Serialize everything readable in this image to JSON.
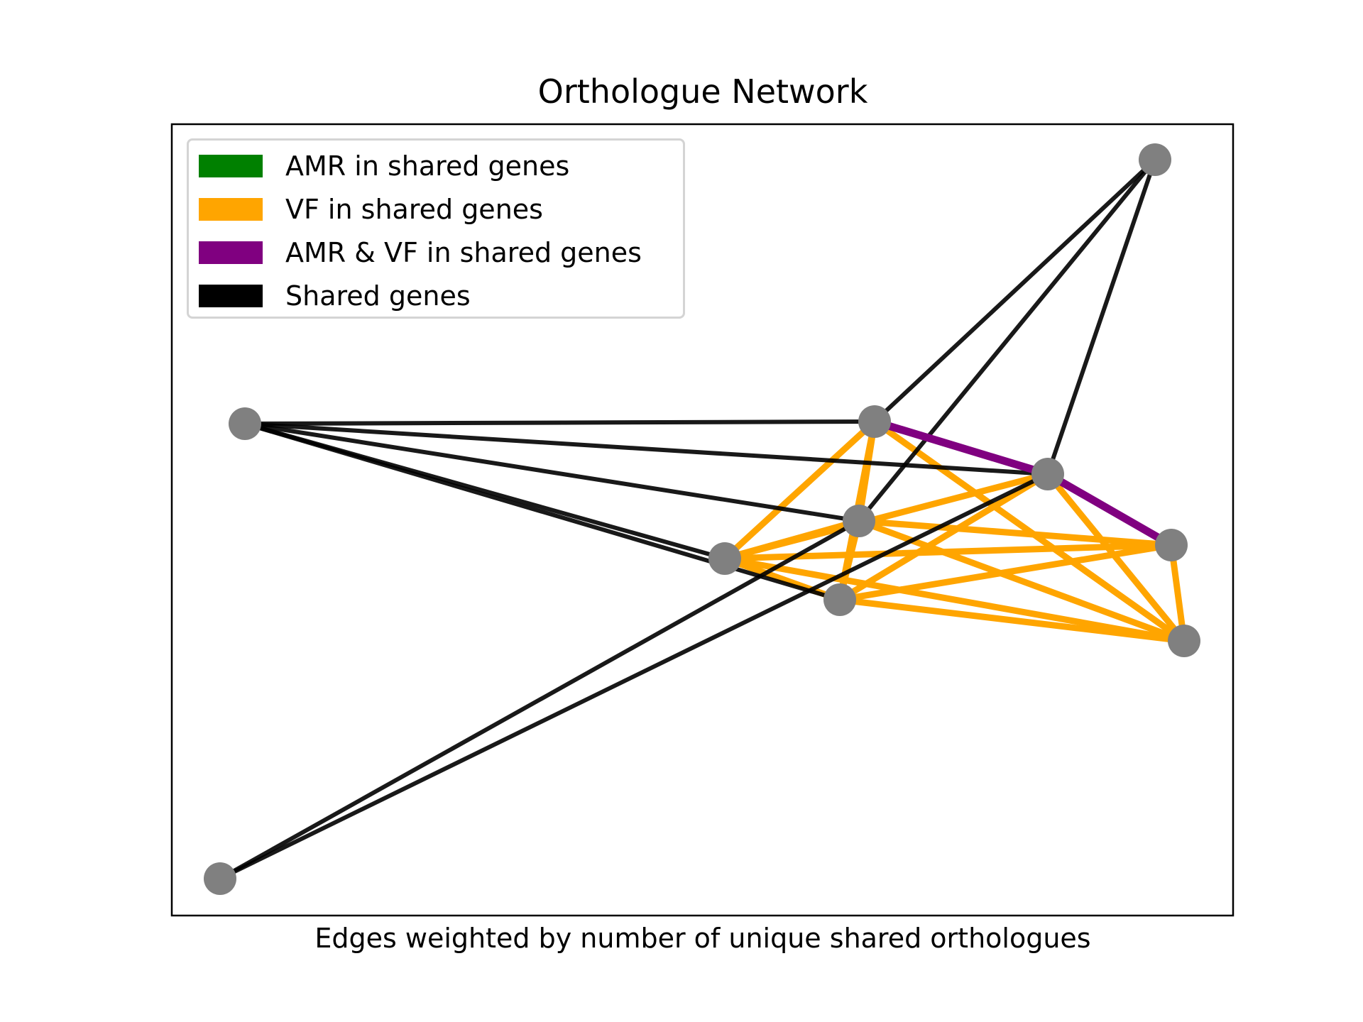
{
  "title": "Orthologue Network",
  "xlabel": "Edges weighted by number of unique shared orthologues",
  "colors": {
    "amr": "#008000",
    "vf": "#FFA500",
    "amr_vf": "#800080",
    "shared": "#000000",
    "node": "#808080"
  },
  "legend": {
    "items": [
      {
        "label": "AMR in shared genes",
        "color": "#008000"
      },
      {
        "label": "VF in shared genes",
        "color": "#FFA500"
      },
      {
        "label": "AMR & VF in shared genes",
        "color": "#800080"
      },
      {
        "label": "Shared genes",
        "color": "#000000"
      }
    ]
  },
  "graph": {
    "nodes": [
      {
        "id": "n1"
      },
      {
        "id": "n2"
      },
      {
        "id": "n3"
      },
      {
        "id": "n4"
      },
      {
        "id": "n5"
      },
      {
        "id": "n6"
      },
      {
        "id": "n7"
      },
      {
        "id": "n8"
      },
      {
        "id": "n9"
      },
      {
        "id": "n10"
      }
    ],
    "edges": [
      {
        "source": "n2",
        "target": "n3",
        "type": "shared"
      },
      {
        "source": "n2",
        "target": "n4",
        "type": "shared"
      },
      {
        "source": "n2",
        "target": "n5",
        "type": "shared"
      },
      {
        "source": "n2",
        "target": "n6",
        "type": "shared"
      },
      {
        "source": "n2",
        "target": "n7",
        "type": "shared"
      },
      {
        "source": "n1",
        "target": "n3",
        "type": "shared"
      },
      {
        "source": "n1",
        "target": "n4",
        "type": "shared"
      },
      {
        "source": "n1",
        "target": "n5",
        "type": "shared"
      },
      {
        "source": "n10",
        "target": "n4",
        "type": "shared"
      },
      {
        "source": "n10",
        "target": "n5",
        "type": "shared"
      },
      {
        "source": "n3",
        "target": "n5",
        "type": "vf"
      },
      {
        "source": "n3",
        "target": "n6",
        "type": "vf"
      },
      {
        "source": "n3",
        "target": "n7",
        "type": "vf"
      },
      {
        "source": "n3",
        "target": "n9",
        "type": "vf"
      },
      {
        "source": "n5",
        "target": "n6",
        "type": "vf"
      },
      {
        "source": "n5",
        "target": "n7",
        "type": "vf"
      },
      {
        "source": "n5",
        "target": "n8",
        "type": "vf"
      },
      {
        "source": "n5",
        "target": "n9",
        "type": "vf"
      },
      {
        "source": "n6",
        "target": "n4",
        "type": "vf"
      },
      {
        "source": "n6",
        "target": "n7",
        "type": "vf"
      },
      {
        "source": "n6",
        "target": "n8",
        "type": "vf"
      },
      {
        "source": "n6",
        "target": "n9",
        "type": "vf"
      },
      {
        "source": "n4",
        "target": "n7",
        "type": "vf"
      },
      {
        "source": "n4",
        "target": "n9",
        "type": "vf"
      },
      {
        "source": "n7",
        "target": "n8",
        "type": "vf"
      },
      {
        "source": "n7",
        "target": "n9",
        "type": "vf"
      },
      {
        "source": "n8",
        "target": "n9",
        "type": "vf"
      },
      {
        "source": "n3",
        "target": "n4",
        "type": "amr_vf"
      },
      {
        "source": "n4",
        "target": "n8",
        "type": "amr_vf"
      }
    ]
  }
}
